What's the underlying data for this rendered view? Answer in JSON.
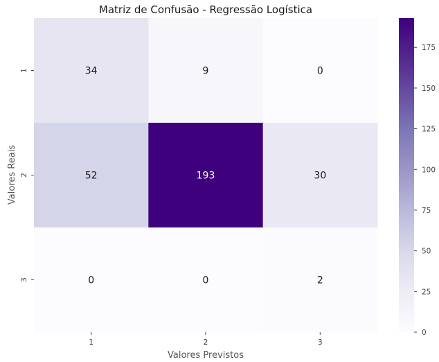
{
  "chart_data": {
    "type": "heatmap",
    "title": "Matriz de Confusão - Regressão Logística",
    "xlabel": "Valores Previstos",
    "ylabel": "Valores Reais",
    "x_categories": [
      "1",
      "2",
      "3"
    ],
    "y_categories": [
      "1",
      "2",
      "3"
    ],
    "values": [
      [
        34,
        9,
        0
      ],
      [
        52,
        193,
        30
      ],
      [
        0,
        0,
        2
      ]
    ],
    "colormap": "Purples",
    "colorbar": {
      "min": 0,
      "max": 193,
      "ticks": [
        0,
        25,
        50,
        75,
        100,
        125,
        150,
        175
      ]
    },
    "grid": false,
    "legend": "colorbar-right"
  }
}
